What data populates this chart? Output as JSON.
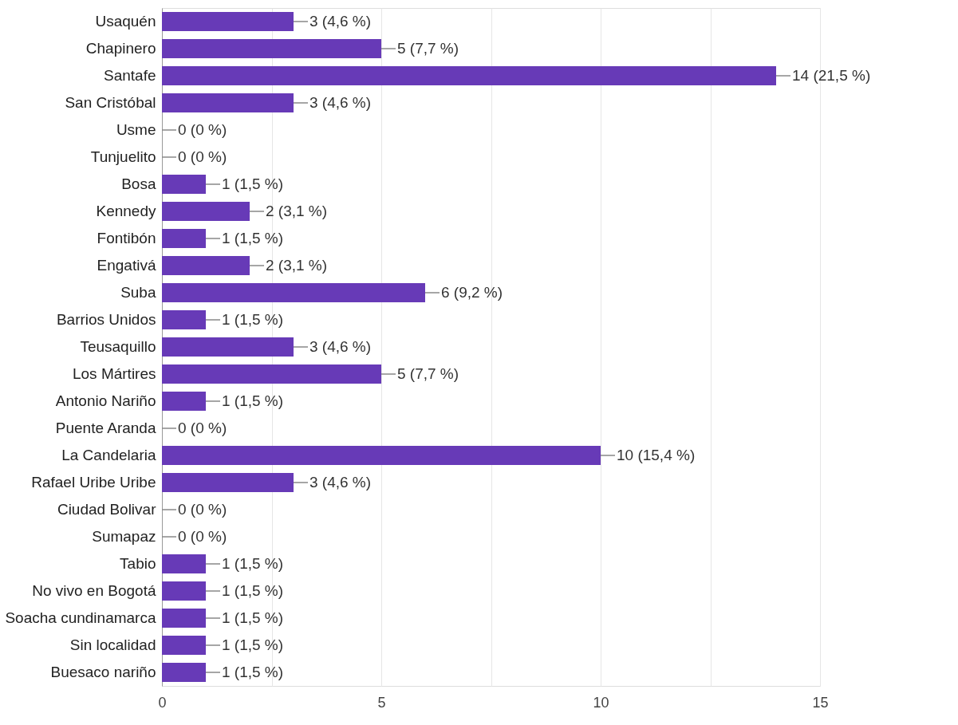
{
  "chart_data": {
    "type": "bar",
    "orientation": "horizontal",
    "categories": [
      "Usaquén",
      "Chapinero",
      "Santafe",
      "San Cristóbal",
      "Usme",
      "Tunjuelito",
      "Bosa",
      "Kennedy",
      "Fontibón",
      "Engativá",
      "Suba",
      "Barrios Unidos",
      "Teusaquillo",
      "Los Mártires",
      "Antonio Nariño",
      "Puente Aranda",
      "La Candelaria",
      "Rafael Uribe Uribe",
      "Ciudad Bolivar",
      "Sumapaz",
      "Tabio",
      "No vivo en Bogotá",
      "Soacha cundinamarca",
      "Sin localidad",
      "Buesaco nariño"
    ],
    "values": [
      3,
      5,
      14,
      3,
      0,
      0,
      1,
      2,
      1,
      2,
      6,
      1,
      3,
      5,
      1,
      0,
      10,
      3,
      0,
      0,
      1,
      1,
      1,
      1,
      1
    ],
    "value_labels": [
      "3 (4,6 %)",
      "5 (7,7 %)",
      "14 (21,5 %)",
      "3 (4,6 %)",
      "0 (0 %)",
      "0 (0 %)",
      "1 (1,5 %)",
      "2 (3,1 %)",
      "1 (1,5 %)",
      "2 (3,1 %)",
      "6 (9,2 %)",
      "1 (1,5 %)",
      "3 (4,6 %)",
      "5 (7,7 %)",
      "1 (1,5 %)",
      "0 (0 %)",
      "10 (15,4 %)",
      "3 (4,6 %)",
      "0 (0 %)",
      "0 (0 %)",
      "1 (1,5 %)",
      "1 (1,5 %)",
      "1 (1,5 %)",
      "1 (1,5 %)",
      "1 (1,5 %)"
    ],
    "color": "#673ab7",
    "xlim": [
      0,
      15
    ],
    "xticks": [
      0,
      {
        "value": 2.5,
        "label": null
      },
      5,
      {
        "value": 7.5,
        "label": null
      },
      10,
      {
        "value": 12.5,
        "label": null
      },
      15
    ],
    "grid": "x"
  }
}
